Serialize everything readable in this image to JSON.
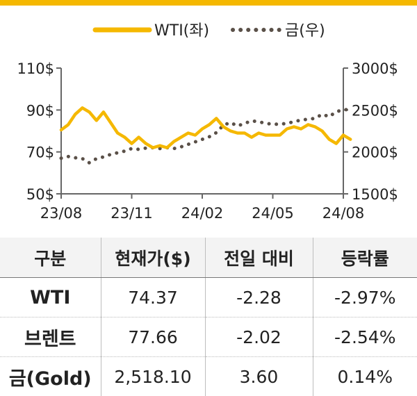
{
  "colors": {
    "top_bar": "#f5b800",
    "wti": "#f5b800",
    "gold": "#5a5048",
    "axis": "#666666",
    "text": "#222222"
  },
  "chart_data": {
    "type": "line",
    "x_ticks": [
      "23/08",
      "23/11",
      "24/02",
      "24/05",
      "24/08"
    ],
    "y_left_ticks": [
      "110$",
      "90$",
      "70$",
      "50$"
    ],
    "y_right_ticks": [
      "3000$",
      "2500$",
      "2000$",
      "1500$"
    ],
    "y_left_range": [
      50,
      110
    ],
    "y_right_range": [
      1500,
      3000
    ],
    "series": [
      {
        "name": "WTI(좌)",
        "axis": "left",
        "style": "solid",
        "x": [
          0,
          0.3,
          0.6,
          0.9,
          1.2,
          1.5,
          1.8,
          2.1,
          2.4,
          2.7,
          3.0,
          3.3,
          3.6,
          3.9,
          4.2,
          4.5,
          4.8,
          5.1,
          5.4,
          5.7,
          6.0,
          6.3,
          6.6,
          6.9,
          7.2,
          7.5,
          7.8,
          8.1,
          8.4,
          8.7,
          9.0,
          9.3,
          9.6,
          9.9,
          10.2,
          10.5,
          10.8,
          11.1,
          11.4,
          11.7,
          12.0,
          12.3
        ],
        "values": [
          80.5,
          83,
          88,
          91,
          89,
          85,
          89,
          84,
          79,
          77,
          74,
          77,
          74,
          72,
          73,
          72,
          75,
          77,
          79,
          78,
          81,
          83,
          86,
          82,
          80,
          79,
          79,
          77,
          79,
          78,
          78,
          78,
          81,
          82,
          81,
          83,
          82,
          80,
          76,
          74,
          78,
          76
        ]
      },
      {
        "name": "금(우)",
        "axis": "right",
        "style": "dotted",
        "x": [
          0,
          0.3,
          0.6,
          0.9,
          1.2,
          1.5,
          1.8,
          2.1,
          2.4,
          2.7,
          3.0,
          3.3,
          3.6,
          3.9,
          4.2,
          4.5,
          4.8,
          5.1,
          5.4,
          5.7,
          6.0,
          6.3,
          6.6,
          6.9,
          7.2,
          7.5,
          7.8,
          8.1,
          8.4,
          8.7,
          9.0,
          9.3,
          9.6,
          9.9,
          10.2,
          10.5,
          10.8,
          11.1,
          11.4,
          11.7,
          12.0,
          12.3
        ],
        "values": [
          1925,
          1945,
          1930,
          1920,
          1870,
          1920,
          1940,
          1970,
          1990,
          2010,
          2040,
          2030,
          2045,
          2050,
          2040,
          2050,
          2040,
          2060,
          2090,
          2120,
          2150,
          2180,
          2230,
          2320,
          2350,
          2310,
          2340,
          2370,
          2360,
          2340,
          2330,
          2330,
          2340,
          2360,
          2380,
          2390,
          2400,
          2450,
          2420,
          2480,
          2500,
          2510
        ]
      }
    ]
  },
  "table": {
    "headers": [
      "구분",
      "현재가($)",
      "전일 대비",
      "등락률"
    ],
    "rows": [
      [
        "WTI",
        "74.37",
        "-2.28",
        "-2.97%"
      ],
      [
        "브렌트",
        "77.66",
        "-2.02",
        "-2.54%"
      ],
      [
        "금(Gold)",
        "2,518.10",
        "3.60",
        "0.14%"
      ]
    ]
  }
}
